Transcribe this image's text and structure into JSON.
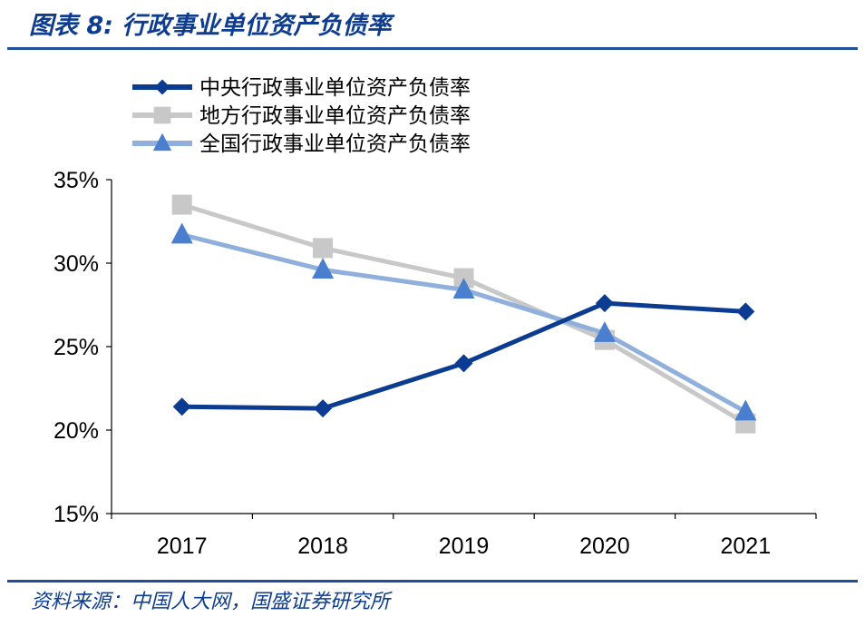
{
  "header": {
    "title": "图表 8:  行政事业单位资产负债率"
  },
  "footer": {
    "source": "资料来源：中国人大网，国盛证券研究所"
  },
  "chart_data": {
    "type": "line",
    "title": "图表 8:  行政事业单位资产负债率",
    "x": [
      "2017",
      "2018",
      "2019",
      "2020",
      "2021"
    ],
    "yticks": [
      "15%",
      "20%",
      "25%",
      "30%",
      "35%"
    ],
    "ylim": [
      15,
      35
    ],
    "grid": false,
    "legend_position": "top-left",
    "series": [
      {
        "name": "中央行政事业单位资产负债率",
        "values": [
          21.4,
          21.3,
          24.0,
          27.6,
          27.1
        ],
        "color": "#0b3c91",
        "marker": "diamond"
      },
      {
        "name": "地方行政事业单位资产负债率",
        "values": [
          33.5,
          30.9,
          29.1,
          25.4,
          20.4
        ],
        "color": "#c8c8c8",
        "marker": "square"
      },
      {
        "name": "全国行政事业单位资产负债率",
        "values": [
          31.7,
          29.6,
          28.4,
          25.8,
          21.1
        ],
        "color": "#8fb0dc",
        "marker": "triangle",
        "marker_color": "#4a7fd0"
      }
    ]
  }
}
